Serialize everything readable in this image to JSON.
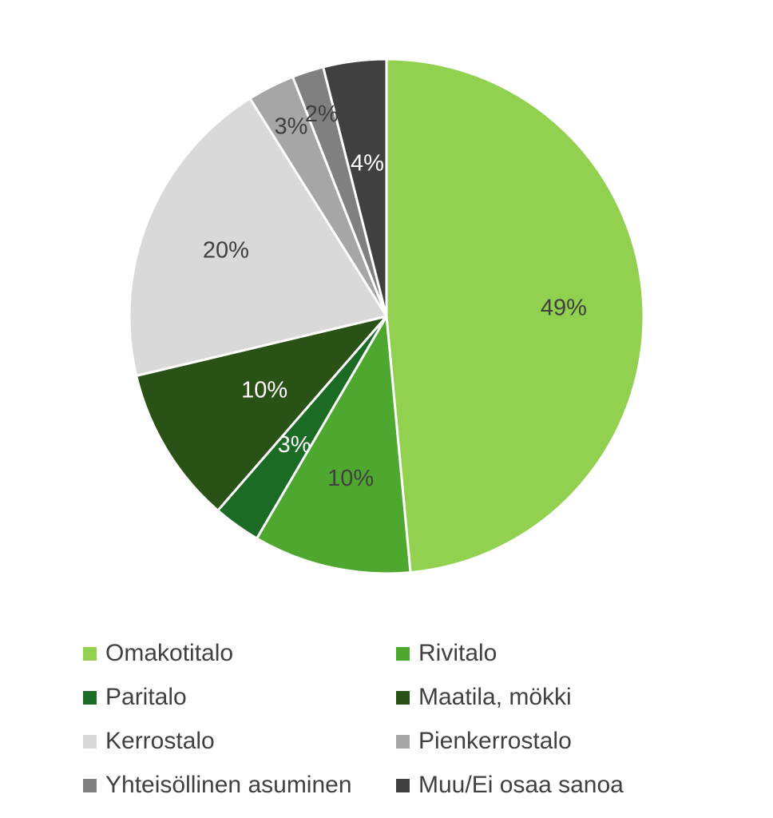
{
  "chart_data": {
    "type": "pie",
    "categories": [
      "Omakotitalo",
      "Rivitalo",
      "Paritalo",
      "Maatila, mökki",
      "Kerrostalo",
      "Pienkerrostalo",
      "Yhteisöllinen asuminen",
      "Muu/Ei osaa sanoa"
    ],
    "values": [
      49,
      10,
      3,
      10,
      20,
      3,
      2,
      4
    ],
    "data_labels": [
      "49%",
      "10%",
      "3%",
      "10%",
      "20%",
      "3%",
      "2%",
      "4%"
    ],
    "colors": [
      "#92d050",
      "#4ea72e",
      "#1b6b24",
      "#2b5216",
      "#d9d9d9",
      "#a6a6a6",
      "#808080",
      "#404040"
    ],
    "label_colors": [
      "#404040",
      "#404040",
      "#ffffff",
      "#ffffff",
      "#404040",
      "#404040",
      "#404040",
      "#ffffff"
    ],
    "start_angle_deg": 0,
    "direction": "clockwise",
    "legend_position": "bottom"
  }
}
